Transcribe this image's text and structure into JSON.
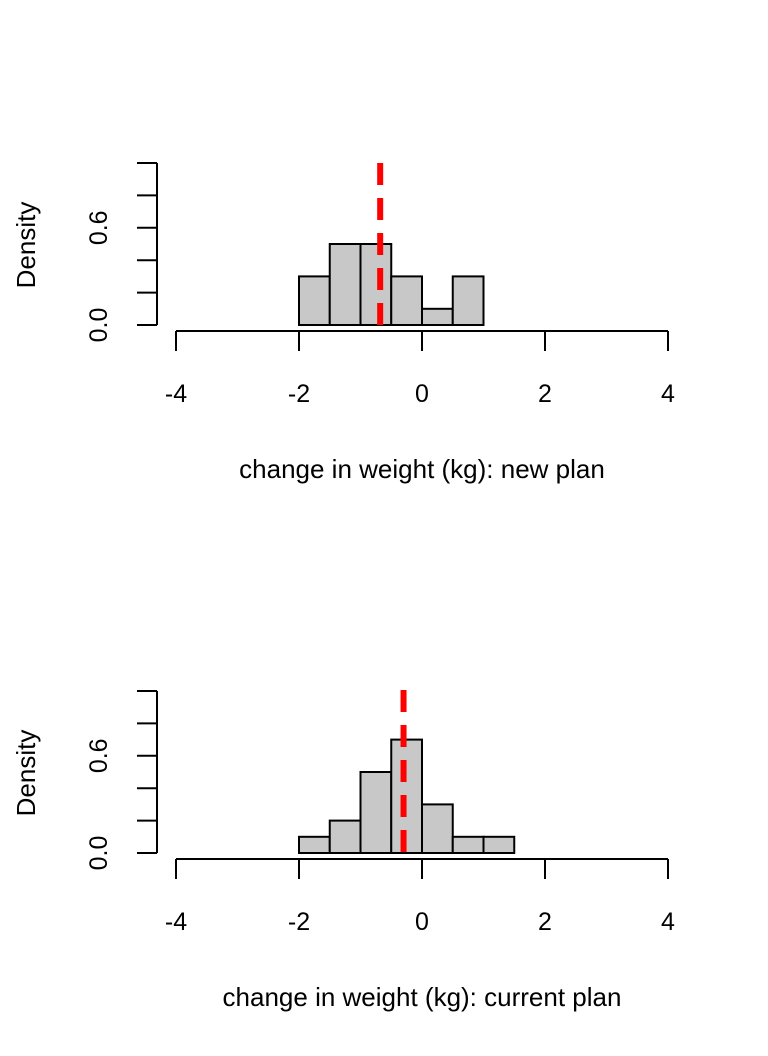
{
  "chart_data": [
    {
      "type": "bar",
      "title": "",
      "xlabel": "change in weight (kg): new plan",
      "ylabel": "Density",
      "xlim": [
        -4,
        4
      ],
      "ylim": [
        0,
        1.0
      ],
      "x_ticks": [
        "-4",
        "-2",
        "0",
        "2",
        "4"
      ],
      "y_ticks": [
        "0.0",
        "0.6"
      ],
      "bin_edges": [
        -2.0,
        -1.5,
        -1.0,
        -0.5,
        0.0,
        0.5,
        1.0
      ],
      "values": [
        0.3,
        0.5,
        0.5,
        0.3,
        0.1,
        0.3
      ],
      "mean_line": {
        "x": -0.68,
        "color": "#ff0000",
        "style": "dashed"
      },
      "bar_color": "#c8c8c8",
      "grid": false
    },
    {
      "type": "bar",
      "title": "",
      "xlabel": "change in weight (kg): current plan",
      "ylabel": "Density",
      "xlim": [
        -4,
        4
      ],
      "ylim": [
        0,
        1.0
      ],
      "x_ticks": [
        "-4",
        "-2",
        "0",
        "2",
        "4"
      ],
      "y_ticks": [
        "0.0",
        "0.6"
      ],
      "bin_edges": [
        -2.0,
        -1.5,
        -1.0,
        -0.5,
        0.0,
        0.5,
        1.0,
        1.5
      ],
      "values": [
        0.1,
        0.2,
        0.5,
        0.7,
        0.3,
        0.1,
        0.1
      ],
      "mean_line": {
        "x": -0.3,
        "color": "#ff0000",
        "style": "dashed"
      },
      "bar_color": "#c8c8c8",
      "grid": false
    }
  ]
}
